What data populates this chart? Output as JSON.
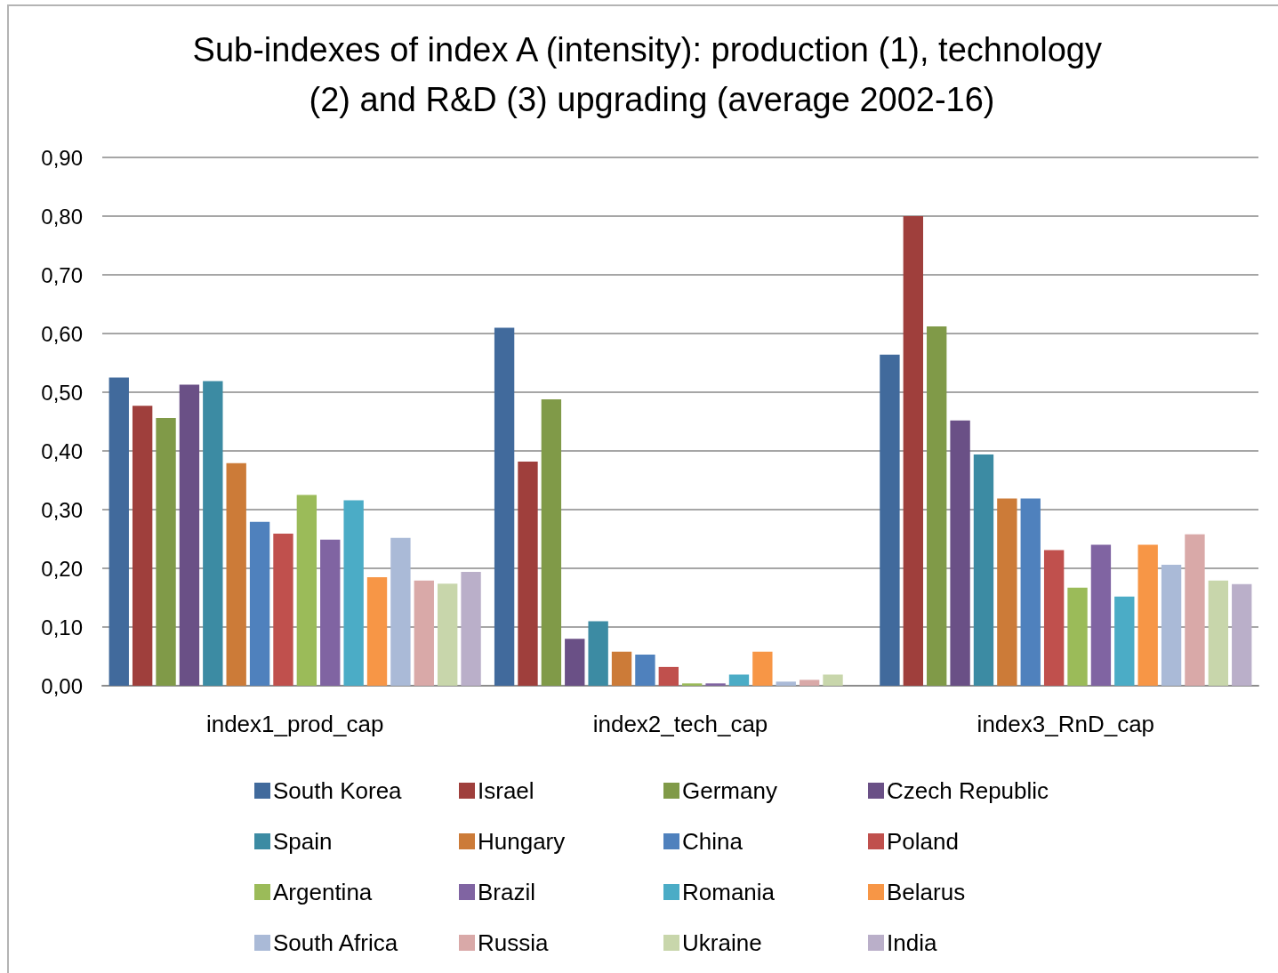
{
  "chart_data": {
    "type": "bar",
    "title": "Sub-indexes of index A (intensity): production (1), technology (2) and R&D (3) upgrading (average 2002-16)",
    "categories": [
      "index1_prod_cap",
      "index2_tech_cap",
      "index3_RnD_cap"
    ],
    "series": [
      {
        "name": "South Korea",
        "color": "#416a9c",
        "values": [
          0.525,
          0.61,
          0.564
        ]
      },
      {
        "name": "Israel",
        "color": "#9f3f3c",
        "values": [
          0.477,
          0.382,
          0.8
        ]
      },
      {
        "name": "Germany",
        "color": "#809a48",
        "values": [
          0.456,
          0.488,
          0.612
        ]
      },
      {
        "name": "Czech Republic",
        "color": "#6a5086",
        "values": [
          0.513,
          0.08,
          0.452
        ]
      },
      {
        "name": "Spain",
        "color": "#3c8ba3",
        "values": [
          0.519,
          0.11,
          0.394
        ]
      },
      {
        "name": "Hungary",
        "color": "#cc7b38",
        "values": [
          0.379,
          0.058,
          0.319
        ]
      },
      {
        "name": "China",
        "color": "#4f81bd",
        "values": [
          0.279,
          0.053,
          0.319
        ]
      },
      {
        "name": "Poland",
        "color": "#c0504d",
        "values": [
          0.259,
          0.032,
          0.231
        ]
      },
      {
        "name": "Argentina",
        "color": "#9bbb59",
        "values": [
          0.325,
          0.004,
          0.167
        ]
      },
      {
        "name": "Brazil",
        "color": "#8064a2",
        "values": [
          0.249,
          0.004,
          0.24
        ]
      },
      {
        "name": "Romania",
        "color": "#4bacc6",
        "values": [
          0.316,
          0.019,
          0.152
        ]
      },
      {
        "name": "Belarus",
        "color": "#f79646",
        "values": [
          0.185,
          0.058,
          0.24
        ]
      },
      {
        "name": "South Africa",
        "color": "#aabad7",
        "values": [
          0.252,
          0.007,
          0.206
        ]
      },
      {
        "name": "Russia",
        "color": "#d9a9a8",
        "values": [
          0.179,
          0.01,
          0.258
        ]
      },
      {
        "name": "Ukraine",
        "color": "#c8d6ab",
        "values": [
          0.174,
          0.019,
          0.179
        ]
      },
      {
        "name": "India",
        "color": "#baafc9",
        "values": [
          0.194,
          0,
          0.173
        ]
      }
    ],
    "ylim": [
      0,
      0.9
    ],
    "yticks": [
      {
        "value": 0,
        "label": "0,00"
      },
      {
        "value": 0.1,
        "label": "0,10"
      },
      {
        "value": 0.2,
        "label": "0,20"
      },
      {
        "value": 0.3,
        "label": "0,30"
      },
      {
        "value": 0.4,
        "label": "0,40"
      },
      {
        "value": 0.5,
        "label": "0,50"
      },
      {
        "value": 0.6,
        "label": "0,60"
      },
      {
        "value": 0.7,
        "label": "0,70"
      },
      {
        "value": 0.8,
        "label": "0,80"
      },
      {
        "value": 0.9,
        "label": "0,90"
      }
    ],
    "grid": "y",
    "legend": "bottom"
  }
}
